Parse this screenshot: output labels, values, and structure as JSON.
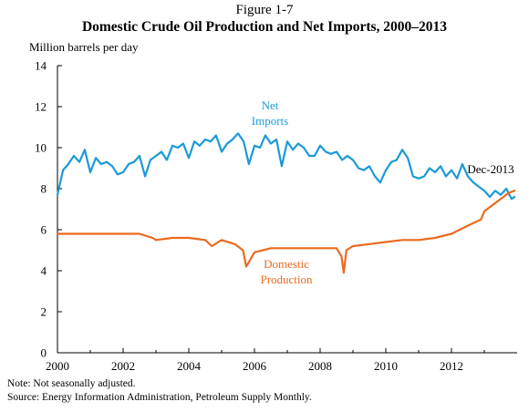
{
  "figure": {
    "label": "Figure 1-7",
    "title": "Domestic Crude Oil Production and Net Imports, 2000–2013",
    "note": "Note: Not seasonally adjusted.",
    "source": "Source: Energy Information Administration,  Petroleum Supply Monthly."
  },
  "colors": {
    "net_imports": "#1b9ad6",
    "domestic_production": "#ea6a1f",
    "axis": "#000000"
  },
  "chart_data": {
    "type": "line",
    "title": "Domestic Crude Oil Production and Net Imports, 2000–2013",
    "xlabel": "",
    "ylabel": "Million barrels per day",
    "xlim": [
      2000,
      2014
    ],
    "ylim": [
      0,
      14
    ],
    "x_ticks": [
      2000,
      2002,
      2004,
      2006,
      2008,
      2010,
      2012
    ],
    "x_tick_labels": [
      "2000",
      "2002",
      "2004",
      "2006",
      "2008",
      "2010",
      "2012"
    ],
    "y_ticks": [
      0,
      2,
      4,
      6,
      8,
      10,
      12,
      14
    ],
    "y_tick_labels": [
      "0",
      "2",
      "4",
      "6",
      "8",
      "10",
      "12",
      "14"
    ],
    "grid": false,
    "annotations": [
      {
        "text": "Net",
        "series": "net_imports"
      },
      {
        "text": "Imports",
        "series": "net_imports"
      },
      {
        "text": "Domestic",
        "series": "domestic_production"
      },
      {
        "text": "Production",
        "series": "domestic_production"
      },
      {
        "text": "Dec-2013",
        "series": ""
      }
    ],
    "series": [
      {
        "key": "net_imports",
        "x": [
          2000.0,
          2000.17,
          2000.33,
          2000.5,
          2000.67,
          2000.83,
          2001.0,
          2001.17,
          2001.33,
          2001.5,
          2001.67,
          2001.83,
          2002.0,
          2002.17,
          2002.33,
          2002.5,
          2002.67,
          2002.83,
          2003.0,
          2003.17,
          2003.33,
          2003.5,
          2003.67,
          2003.83,
          2004.0,
          2004.17,
          2004.33,
          2004.5,
          2004.67,
          2004.83,
          2005.0,
          2005.17,
          2005.33,
          2005.5,
          2005.67,
          2005.83,
          2006.0,
          2006.17,
          2006.33,
          2006.5,
          2006.67,
          2006.83,
          2007.0,
          2007.17,
          2007.33,
          2007.5,
          2007.67,
          2007.83,
          2008.0,
          2008.17,
          2008.33,
          2008.5,
          2008.67,
          2008.83,
          2009.0,
          2009.17,
          2009.33,
          2009.5,
          2009.67,
          2009.83,
          2010.0,
          2010.17,
          2010.33,
          2010.5,
          2010.67,
          2010.83,
          2011.0,
          2011.17,
          2011.33,
          2011.5,
          2011.67,
          2011.83,
          2012.0,
          2012.17,
          2012.33,
          2012.5,
          2012.67,
          2012.83,
          2013.0,
          2013.17,
          2013.33,
          2013.5,
          2013.67,
          2013.83,
          2013.92
        ],
        "y": [
          7.7,
          8.9,
          9.2,
          9.6,
          9.3,
          9.9,
          8.8,
          9.5,
          9.2,
          9.3,
          9.1,
          8.7,
          8.8,
          9.2,
          9.3,
          9.6,
          8.6,
          9.4,
          9.6,
          9.8,
          9.4,
          10.1,
          10.0,
          10.2,
          9.5,
          10.3,
          10.1,
          10.4,
          10.3,
          10.6,
          9.8,
          10.2,
          10.4,
          10.7,
          10.3,
          9.2,
          10.1,
          10.0,
          10.6,
          10.2,
          10.4,
          9.1,
          10.3,
          9.9,
          10.2,
          10.0,
          9.6,
          9.6,
          10.1,
          9.8,
          9.7,
          9.8,
          9.4,
          9.6,
          9.4,
          9.0,
          8.9,
          9.1,
          8.6,
          8.3,
          8.9,
          9.3,
          9.4,
          9.9,
          9.5,
          8.6,
          8.5,
          8.6,
          9.0,
          8.8,
          9.1,
          8.6,
          8.9,
          8.5,
          9.2,
          8.6,
          8.3,
          8.1,
          7.9,
          7.6,
          7.9,
          7.7,
          8.0,
          7.5,
          7.6
        ]
      },
      {
        "key": "domestic_production",
        "x": [
          2000.0,
          2000.5,
          2001.0,
          2001.5,
          2002.0,
          2002.5,
          2002.9,
          2003.0,
          2003.5,
          2004.0,
          2004.5,
          2004.7,
          2005.0,
          2005.4,
          2005.65,
          2005.75,
          2006.0,
          2006.5,
          2007.0,
          2007.5,
          2008.0,
          2008.5,
          2008.65,
          2008.72,
          2008.8,
          2009.0,
          2009.5,
          2010.0,
          2010.5,
          2011.0,
          2011.5,
          2012.0,
          2012.5,
          2012.9,
          2013.0,
          2013.25,
          2013.5,
          2013.75,
          2013.92
        ],
        "y": [
          5.8,
          5.8,
          5.8,
          5.8,
          5.8,
          5.8,
          5.6,
          5.5,
          5.6,
          5.6,
          5.5,
          5.2,
          5.5,
          5.3,
          5.0,
          4.2,
          4.9,
          5.1,
          5.1,
          5.1,
          5.1,
          5.1,
          4.7,
          3.9,
          5.0,
          5.2,
          5.3,
          5.4,
          5.5,
          5.5,
          5.6,
          5.8,
          6.2,
          6.5,
          6.9,
          7.2,
          7.5,
          7.8,
          7.9
        ]
      }
    ]
  }
}
